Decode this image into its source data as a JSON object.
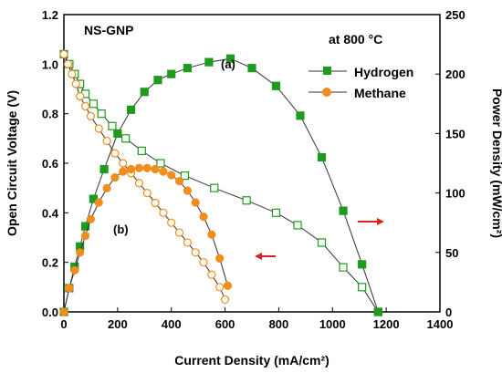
{
  "chart_data": {
    "type": "line",
    "title": "NS-GNP",
    "condition_label": "at 800 °C",
    "xlabel": "Current Density (mA/cm²)",
    "ylabel_left": "Open Circuit Voltage (V)",
    "ylabel_right": "Power Density (mW/cm²)",
    "xlim": [
      0,
      1400
    ],
    "ylim_left": [
      0,
      1.2
    ],
    "ylim_right": [
      0,
      250
    ],
    "x_ticks": [
      "0",
      "200",
      "400",
      "600",
      "800",
      "1000",
      "1200",
      "1400"
    ],
    "y_left_ticks": [
      "0.0",
      "0.2",
      "0.4",
      "0.6",
      "0.8",
      "1.0",
      "1.2"
    ],
    "y_right_ticks": [
      "0",
      "50",
      "100",
      "150",
      "200",
      "250"
    ],
    "annotations": [
      "(a)",
      "(b)"
    ],
    "legend_placement": "top-right",
    "colors": {
      "hydrogen": "#1e9b1e",
      "methane": "#f28c1c",
      "arrow": "#e0201f",
      "line": "#333333"
    },
    "series": [
      {
        "name": "Hydrogen",
        "kind": "voltage",
        "axis": "left",
        "x": [
          0,
          20,
          40,
          60,
          80,
          110,
          140,
          180,
          230,
          290,
          360,
          450,
          560,
          680,
          790,
          870,
          960,
          1040,
          1110,
          1170
        ],
        "y": [
          1.04,
          1.0,
          0.96,
          0.92,
          0.88,
          0.84,
          0.8,
          0.75,
          0.7,
          0.65,
          0.6,
          0.55,
          0.5,
          0.45,
          0.4,
          0.35,
          0.28,
          0.18,
          0.1,
          0.0
        ]
      },
      {
        "name": "Hydrogen",
        "kind": "power",
        "axis": "right",
        "x": [
          0,
          20,
          40,
          60,
          80,
          110,
          150,
          200,
          250,
          300,
          350,
          400,
          460,
          540,
          620,
          700,
          790,
          880,
          960,
          1040,
          1110,
          1170
        ],
        "y": [
          0,
          20,
          38,
          55,
          72,
          95,
          120,
          150,
          170,
          185,
          195,
          200,
          205,
          210,
          213,
          205,
          190,
          165,
          130,
          85,
          40,
          0
        ]
      },
      {
        "name": "Methane",
        "kind": "voltage",
        "axis": "left",
        "x": [
          0,
          15,
          30,
          45,
          60,
          80,
          100,
          130,
          160,
          190,
          220,
          250,
          280,
          310,
          340,
          370,
          400,
          430,
          460,
          490,
          520,
          550,
          580,
          600
        ],
        "y": [
          1.04,
          1.0,
          0.96,
          0.92,
          0.87,
          0.83,
          0.79,
          0.74,
          0.69,
          0.64,
          0.6,
          0.56,
          0.52,
          0.48,
          0.44,
          0.4,
          0.36,
          0.32,
          0.28,
          0.24,
          0.2,
          0.15,
          0.1,
          0.05
        ]
      },
      {
        "name": "Methane",
        "kind": "power",
        "axis": "right",
        "x": [
          0,
          20,
          40,
          60,
          80,
          100,
          130,
          160,
          190,
          220,
          250,
          280,
          310,
          340,
          370,
          400,
          430,
          460,
          490,
          520,
          550,
          580,
          610
        ],
        "y": [
          0,
          20,
          35,
          50,
          64,
          78,
          92,
          104,
          113,
          118,
          120,
          121,
          121,
          120,
          118,
          115,
          110,
          102,
          92,
          80,
          65,
          45,
          22
        ]
      }
    ]
  }
}
